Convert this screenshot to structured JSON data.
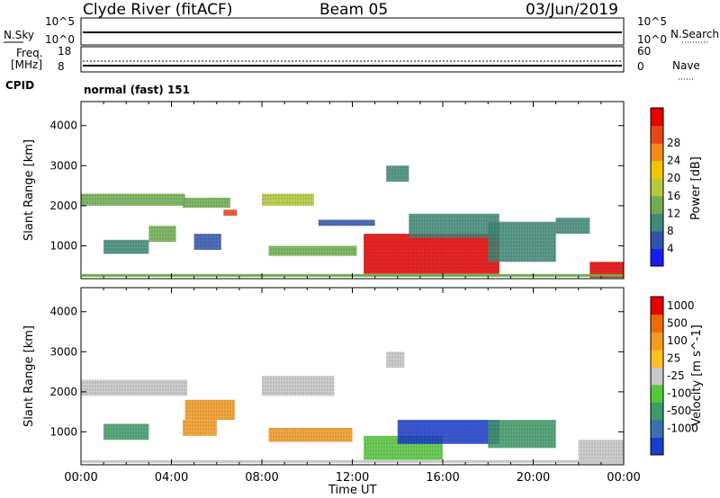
{
  "header": {
    "station": "Clyde River (fitACF)",
    "beam": "Beam 05",
    "date": "03/Jun/2019"
  },
  "status_panels": {
    "nsky_label": "N.Sky",
    "nsearch_label": "N.Search",
    "nsky_ticks": [
      "10^5",
      "10^0"
    ],
    "nsky_right_ticks": [
      "10^5",
      "10^0"
    ],
    "freq_label": "Freq.",
    "freq_unit": "[MHz]",
    "freq_ticks": [
      "18",
      "8"
    ],
    "nave_label": "Nave",
    "nave_ticks": [
      "60",
      "0"
    ],
    "cpid_label": "CPID",
    "cpid_text": "normal (fast) 151"
  },
  "chart_data": [
    {
      "type": "heatmap",
      "ylabel": "Slant Range [km]",
      "ylim": [
        180,
        4600
      ],
      "y_ticks": [
        "1000",
        "2000",
        "3000",
        "4000"
      ],
      "colorbar": {
        "label": "Power [dB]",
        "ticks": [
          "4",
          "8",
          "12",
          "16",
          "20",
          "24",
          "28"
        ],
        "colors": [
          "#1a1aff",
          "#2f56ae",
          "#3f8a78",
          "#6fae50",
          "#b4c93a",
          "#f2c400",
          "#f28a1a",
          "#e8461a",
          "#e60000"
        ]
      },
      "regions": [
        {
          "t": [
            0.0,
            4.6
          ],
          "r": [
            2000,
            2300
          ],
          "color": "#6fae50"
        },
        {
          "t": [
            4.5,
            6.6
          ],
          "r": [
            1950,
            2200
          ],
          "color": "#6fae50"
        },
        {
          "t": [
            6.3,
            6.9
          ],
          "r": [
            1750,
            1900
          ],
          "color": "#e8461a"
        },
        {
          "t": [
            8.0,
            10.3
          ],
          "r": [
            2000,
            2300
          ],
          "color": "#b4c93a"
        },
        {
          "t": [
            8.3,
            12.2
          ],
          "r": [
            750,
            1000
          ],
          "color": "#6fae50"
        },
        {
          "t": [
            1.0,
            3.0
          ],
          "r": [
            800,
            1150
          ],
          "color": "#3f8a78"
        },
        {
          "t": [
            3.0,
            4.2
          ],
          "r": [
            1100,
            1500
          ],
          "color": "#6fae50"
        },
        {
          "t": [
            5.0,
            6.2
          ],
          "r": [
            900,
            1300
          ],
          "color": "#2f56ae"
        },
        {
          "t": [
            10.5,
            13.0
          ],
          "r": [
            1500,
            1650
          ],
          "color": "#2f56ae"
        },
        {
          "t": [
            12.5,
            18.5
          ],
          "r": [
            300,
            1300
          ],
          "color": "#e60000"
        },
        {
          "t": [
            14.5,
            18.5
          ],
          "r": [
            1200,
            1800
          ],
          "color": "#3f8a78"
        },
        {
          "t": [
            18.0,
            21.0
          ],
          "r": [
            600,
            1600
          ],
          "color": "#3f8a78"
        },
        {
          "t": [
            21.0,
            22.5
          ],
          "r": [
            1300,
            1700
          ],
          "color": "#3f8a78"
        },
        {
          "t": [
            22.5,
            24.0
          ],
          "r": [
            200,
            600
          ],
          "color": "#e60000"
        },
        {
          "t": [
            13.5,
            14.5
          ],
          "r": [
            2600,
            3000
          ],
          "color": "#3f8a78"
        }
      ]
    },
    {
      "type": "heatmap",
      "ylabel": "Slant Range [km]",
      "xlabel": "Time UT",
      "ylim": [
        180,
        4600
      ],
      "y_ticks": [
        "1000",
        "2000",
        "3000",
        "4000"
      ],
      "x_ticks": [
        "00:00",
        "04:00",
        "08:00",
        "12:00",
        "16:00",
        "20:00",
        "00:00"
      ],
      "colorbar": {
        "label": "Velocity [m s^-1]",
        "ticks": [
          "1000",
          "500",
          "100",
          "25",
          "-25",
          "-100",
          "-500",
          "-1000"
        ],
        "colors": [
          "#1a3cd0",
          "#3a70b0",
          "#3f9a6a",
          "#54c83a",
          "#c8c8c8",
          "#ffc020",
          "#f59a20",
          "#f26a10",
          "#e60000"
        ]
      },
      "regions": [
        {
          "t": [
            0.0,
            4.7
          ],
          "r": [
            1900,
            2300
          ],
          "color": "#c8c8c8"
        },
        {
          "t": [
            8.0,
            11.2
          ],
          "r": [
            1900,
            2400
          ],
          "color": "#c8c8c8"
        },
        {
          "t": [
            4.6,
            6.8
          ],
          "r": [
            1300,
            1800
          ],
          "color": "#f59a20"
        },
        {
          "t": [
            8.3,
            12.0
          ],
          "r": [
            750,
            1100
          ],
          "color": "#f59a20"
        },
        {
          "t": [
            4.5,
            6.0
          ],
          "r": [
            900,
            1300
          ],
          "color": "#f59a20"
        },
        {
          "t": [
            1.0,
            3.0
          ],
          "r": [
            800,
            1200
          ],
          "color": "#3f9a6a"
        },
        {
          "t": [
            12.5,
            16.0
          ],
          "r": [
            300,
            900
          ],
          "color": "#54c83a"
        },
        {
          "t": [
            14.0,
            18.5
          ],
          "r": [
            700,
            1300
          ],
          "color": "#1a3cd0"
        },
        {
          "t": [
            18.0,
            21.0
          ],
          "r": [
            600,
            1300
          ],
          "color": "#3f9a6a"
        },
        {
          "t": [
            22.0,
            24.0
          ],
          "r": [
            200,
            800
          ],
          "color": "#c8c8c8"
        },
        {
          "t": [
            13.5,
            14.3
          ],
          "r": [
            2600,
            3000
          ],
          "color": "#c8c8c8"
        }
      ]
    }
  ]
}
